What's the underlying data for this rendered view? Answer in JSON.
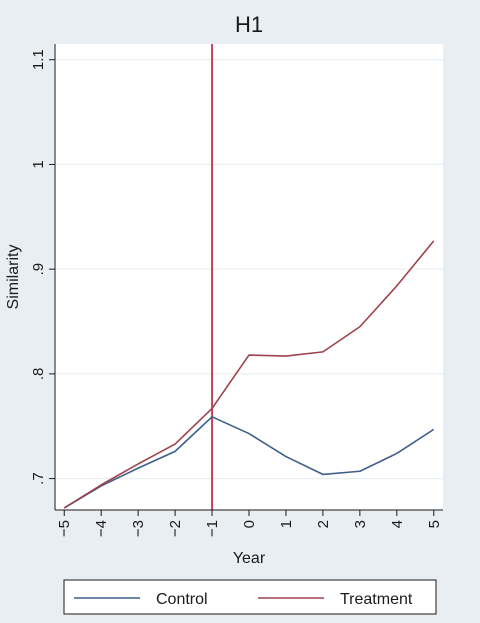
{
  "chart_data": {
    "type": "line",
    "title": "H1",
    "xlabel": "Year",
    "ylabel": "Similarity",
    "x": [
      -5,
      -4,
      -3,
      -2,
      -1,
      0,
      1,
      2,
      3,
      4,
      5
    ],
    "x_tick_labels": [
      "−5",
      "−4",
      "−3",
      "−2",
      "−1",
      "0",
      "1",
      "2",
      "3",
      "4",
      "5"
    ],
    "y_ticks": [
      0.7,
      0.8,
      0.9,
      1.0,
      1.1
    ],
    "y_tick_labels": [
      ".7",
      ".8",
      ".9",
      "1",
      "1.1"
    ],
    "ylim": [
      0.67,
      1.115
    ],
    "xlim": [
      -5.25,
      5.25
    ],
    "grid": true,
    "legend_position": "bottom",
    "reference_line": {
      "x": -1,
      "color": "#c0334d"
    },
    "series": [
      {
        "name": "Control",
        "color": "#3d5f8a",
        "values": [
          0.672,
          0.693,
          0.71,
          0.726,
          0.759,
          0.743,
          0.721,
          0.704,
          0.707,
          0.724,
          0.747
        ]
      },
      {
        "name": "Treatment",
        "color": "#a0424b",
        "values": [
          0.672,
          0.694,
          0.714,
          0.733,
          0.767,
          0.818,
          0.817,
          0.821,
          0.845,
          0.884,
          0.927
        ]
      }
    ]
  }
}
